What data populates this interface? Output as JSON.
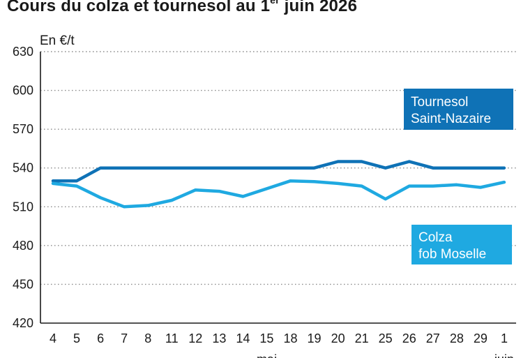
{
  "chart_data": {
    "type": "line",
    "title": {
      "main": "Cours du colza et tournesol au 1",
      "sup": "er",
      "end": " juin 2026"
    },
    "ylabel": "En €/t",
    "ylim": [
      420,
      630
    ],
    "yticks": [
      "630",
      "600",
      "570",
      "540",
      "510",
      "480",
      "450",
      "420"
    ],
    "ytick_values": [
      630,
      600,
      570,
      540,
      510,
      480,
      450,
      420
    ],
    "categories": [
      "4",
      "5",
      "6",
      "7",
      "8",
      "11",
      "12",
      "13",
      "14",
      "15",
      "18",
      "19",
      "20",
      "21",
      "25",
      "26",
      "27",
      "28",
      "29",
      "1"
    ],
    "month_labels": [
      {
        "label": "mai",
        "at_index": 9
      },
      {
        "label": "juin",
        "at_index": 19
      }
    ],
    "grid": "horizontal-dotted",
    "series": [
      {
        "name_lines": [
          "Tournesol",
          "Saint-Nazaire"
        ],
        "color": "#0f72b6",
        "values": [
          530,
          530,
          540,
          540,
          540,
          540,
          540,
          540,
          540,
          540,
          540,
          540,
          545,
          545,
          540,
          545,
          540,
          540,
          540,
          540
        ]
      },
      {
        "name_lines": [
          "Colza",
          "fob Moselle"
        ],
        "color": "#1fa9e1",
        "values": [
          528,
          526,
          517,
          510,
          511,
          515,
          523,
          522,
          518,
          524,
          530,
          529.5,
          528,
          526,
          516,
          526,
          526,
          527,
          525,
          529
        ]
      }
    ]
  }
}
